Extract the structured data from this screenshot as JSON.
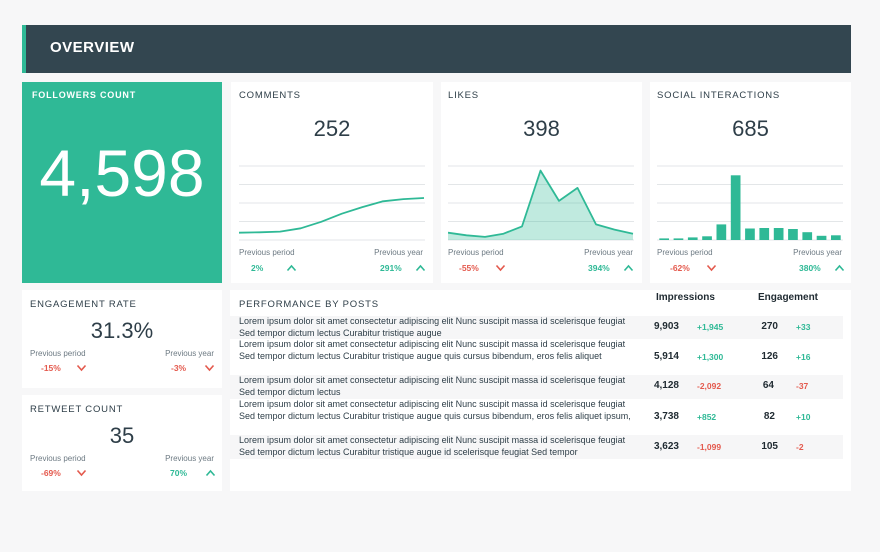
{
  "header": {
    "title": "OVERVIEW"
  },
  "followers": {
    "title": "FOLLOWERS COUNT",
    "value": "4,598"
  },
  "comments": {
    "title": "COMMENTS",
    "value": "252",
    "prev_period_label": "Previous period",
    "prev_year_label": "Previous year",
    "prev_period": "2%",
    "prev_year": "291%",
    "prev_period_dir": "up",
    "prev_year_dir": "up"
  },
  "likes": {
    "title": "LIKES",
    "value": "398",
    "prev_period_label": "Previous period",
    "prev_year_label": "Previous year",
    "prev_period": "-55%",
    "prev_year": "394%",
    "prev_period_dir": "down",
    "prev_year_dir": "up"
  },
  "social": {
    "title": "SOCIAL INTERACTIONS",
    "value": "685",
    "prev_period_label": "Previous period",
    "prev_year_label": "Previous year",
    "prev_period": "-62%",
    "prev_year": "380%",
    "prev_period_dir": "down",
    "prev_year_dir": "up"
  },
  "engagement": {
    "title": "ENGAGEMENT RATE",
    "value": "31.3%",
    "prev_period_label": "Previous period",
    "prev_year_label": "Previous year",
    "prev_period": "-15%",
    "prev_year": "-3%",
    "prev_period_dir": "down",
    "prev_year_dir": "down"
  },
  "retweet": {
    "title": "RETWEET COUNT",
    "value": "35",
    "prev_period_label": "Previous period",
    "prev_year_label": "Previous year",
    "prev_period": "-69%",
    "prev_year": "70%",
    "prev_period_dir": "down",
    "prev_year_dir": "up"
  },
  "performance": {
    "title": "PERFORMANCE BY POSTS",
    "col_impressions": "Impressions",
    "col_engagement": "Engagement",
    "rows": [
      {
        "text": "Lorem ipsum dolor sit amet consectetur adipiscing elit Nunc suscipit massa id scelerisque feugiat Sed tempor dictum lectus Curabitur tristique augue",
        "impressions": "9,903",
        "imp_delta": "+1,945",
        "engagement": "270",
        "eng_delta": "+33"
      },
      {
        "text": "Lorem ipsum dolor sit amet consectetur adipiscing elit Nunc suscipit massa id scelerisque feugiat Sed tempor dictum lectus Curabitur tristique augue quis cursus bibendum, eros felis aliquet",
        "impressions": "5,914",
        "imp_delta": "+1,300",
        "engagement": "126",
        "eng_delta": "+16"
      },
      {
        "text": "Lorem ipsum dolor sit amet consectetur adipiscing elit Nunc suscipit massa id scelerisque feugiat Sed tempor dictum lectus",
        "impressions": "4,128",
        "imp_delta": "-2,092",
        "engagement": "64",
        "eng_delta": "-37"
      },
      {
        "text": "Lorem ipsum dolor sit amet consectetur adipiscing elit Nunc suscipit massa id scelerisque feugiat Sed tempor dictum lectus Curabitur tristique augue quis cursus bibendum, eros felis aliquet ipsum,",
        "impressions": "3,738",
        "imp_delta": "+852",
        "engagement": "82",
        "eng_delta": "+10"
      },
      {
        "text": "Lorem ipsum dolor sit amet consectetur adipiscing elit Nunc suscipit massa id scelerisque feugiat Sed tempor dictum lectus Curabitur tristique augue id scelerisque feugiat Sed tempor",
        "impressions": "3,623",
        "imp_delta": "-1,099",
        "engagement": "105",
        "eng_delta": "-2"
      }
    ]
  },
  "colors": {
    "accent": "#2fb996",
    "header_bg": "#334650",
    "negative": "#e45a4e",
    "text": "#2e3e48"
  },
  "chart_data": [
    {
      "type": "line",
      "name": "comments",
      "values": [
        2,
        2.1,
        2.3,
        3.2,
        5,
        7.2,
        9,
        10.6,
        11.2,
        11.5
      ],
      "ylim": [
        0,
        20
      ]
    },
    {
      "type": "area",
      "name": "likes",
      "values": [
        1.4,
        0.9,
        0.6,
        1.2,
        2.6,
        13.3,
        7.5,
        10,
        3,
        2,
        1.2
      ],
      "ylim": [
        0,
        14
      ]
    },
    {
      "type": "bar",
      "name": "social",
      "values": [
        0.3,
        0.3,
        0.5,
        0.7,
        3,
        12.4,
        2.2,
        2.3,
        2.3,
        2.1,
        1.5,
        0.8,
        0.9
      ],
      "ylim": [
        0,
        14
      ]
    }
  ]
}
